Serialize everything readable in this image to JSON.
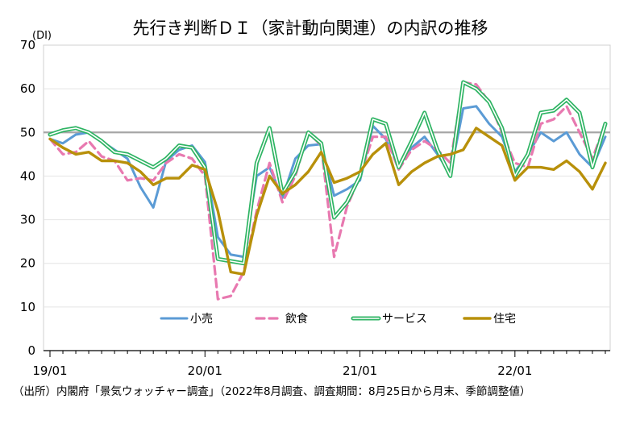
{
  "chart_data": {
    "type": "line",
    "title": "先行き判断ＤＩ（家計動向関連）の内訳の推移",
    "ylabel": "(DI)",
    "ylim": [
      0,
      70
    ],
    "yticks": [
      0,
      10,
      20,
      30,
      40,
      50,
      60,
      70
    ],
    "reference_line": 50,
    "x_tick_labels": [
      "19/01",
      "20/01",
      "21/01",
      "22/01"
    ],
    "x_tick_index": [
      0,
      12,
      24,
      36
    ],
    "n_points": 44,
    "legend_position": "bottom-center",
    "series": [
      {
        "name": "小売",
        "color": "#5B9BD5",
        "style": "solid",
        "values": [
          48.5,
          47.5,
          49.5,
          50.0,
          48.0,
          46.0,
          44.0,
          37.5,
          32.8,
          43.5,
          46.0,
          47.0,
          43.2,
          26.0,
          22.0,
          21.5,
          40.0,
          42.0,
          35.0,
          44.0,
          47.0,
          47.3,
          35.5,
          37.0,
          39.0,
          51.5,
          48.5,
          42.5,
          46.5,
          49.0,
          45.0,
          40.5,
          55.5,
          56.0,
          52.0,
          49.0,
          41.0,
          45.0,
          50.0,
          48.0,
          50.0,
          45.0,
          42.0,
          49.0
        ]
      },
      {
        "name": "飲食",
        "color": "#E879B0",
        "style": "dashed",
        "values": [
          48.5,
          45.0,
          45.5,
          48.0,
          44.5,
          43.5,
          39.0,
          39.5,
          39.0,
          43.0,
          45.0,
          44.0,
          40.0,
          11.8,
          12.5,
          18.0,
          32.0,
          43.0,
          34.0,
          40.0,
          50.0,
          47.0,
          21.5,
          33.0,
          40.0,
          49.0,
          49.0,
          41.5,
          46.0,
          48.0,
          46.0,
          43.0,
          61.5,
          61.0,
          57.0,
          50.0,
          43.0,
          42.0,
          52.0,
          53.0,
          56.0,
          50.0,
          44.0,
          52.0
        ]
      },
      {
        "name": "サービス",
        "color": "#2EB463",
        "style": "double",
        "values": [
          49.5,
          50.5,
          51.0,
          50.0,
          48.0,
          45.5,
          45.0,
          43.5,
          42.0,
          44.0,
          47.0,
          46.5,
          42.0,
          21.0,
          20.5,
          20.0,
          43.0,
          51.0,
          36.0,
          41.0,
          50.0,
          47.5,
          30.5,
          34.0,
          40.0,
          53.0,
          52.0,
          42.0,
          48.0,
          54.5,
          46.0,
          40.0,
          61.5,
          60.0,
          57.0,
          51.0,
          40.0,
          45.0,
          54.5,
          55.0,
          57.5,
          54.5,
          42.0,
          52.0
        ]
      },
      {
        "name": "住宅",
        "color": "#B8900A",
        "style": "solid",
        "values": [
          48.5,
          46.5,
          45.0,
          45.5,
          43.5,
          43.5,
          43.0,
          41.0,
          38.0,
          39.5,
          39.5,
          42.5,
          41.5,
          32.0,
          18.0,
          17.5,
          31.0,
          40.0,
          36.0,
          38.0,
          41.0,
          45.5,
          38.5,
          39.5,
          41.0,
          45.0,
          47.5,
          38.0,
          41.0,
          43.0,
          44.5,
          45.0,
          46.0,
          51.0,
          49.0,
          47.0,
          39.0,
          42.0,
          42.0,
          41.5,
          43.5,
          41.0,
          37.0,
          43.0
        ]
      }
    ]
  },
  "source_note": "（出所）内閣府「景気ウォッチャー調査」（2022年8月調査、調査期間：8月25日から月末、季節調整値）"
}
